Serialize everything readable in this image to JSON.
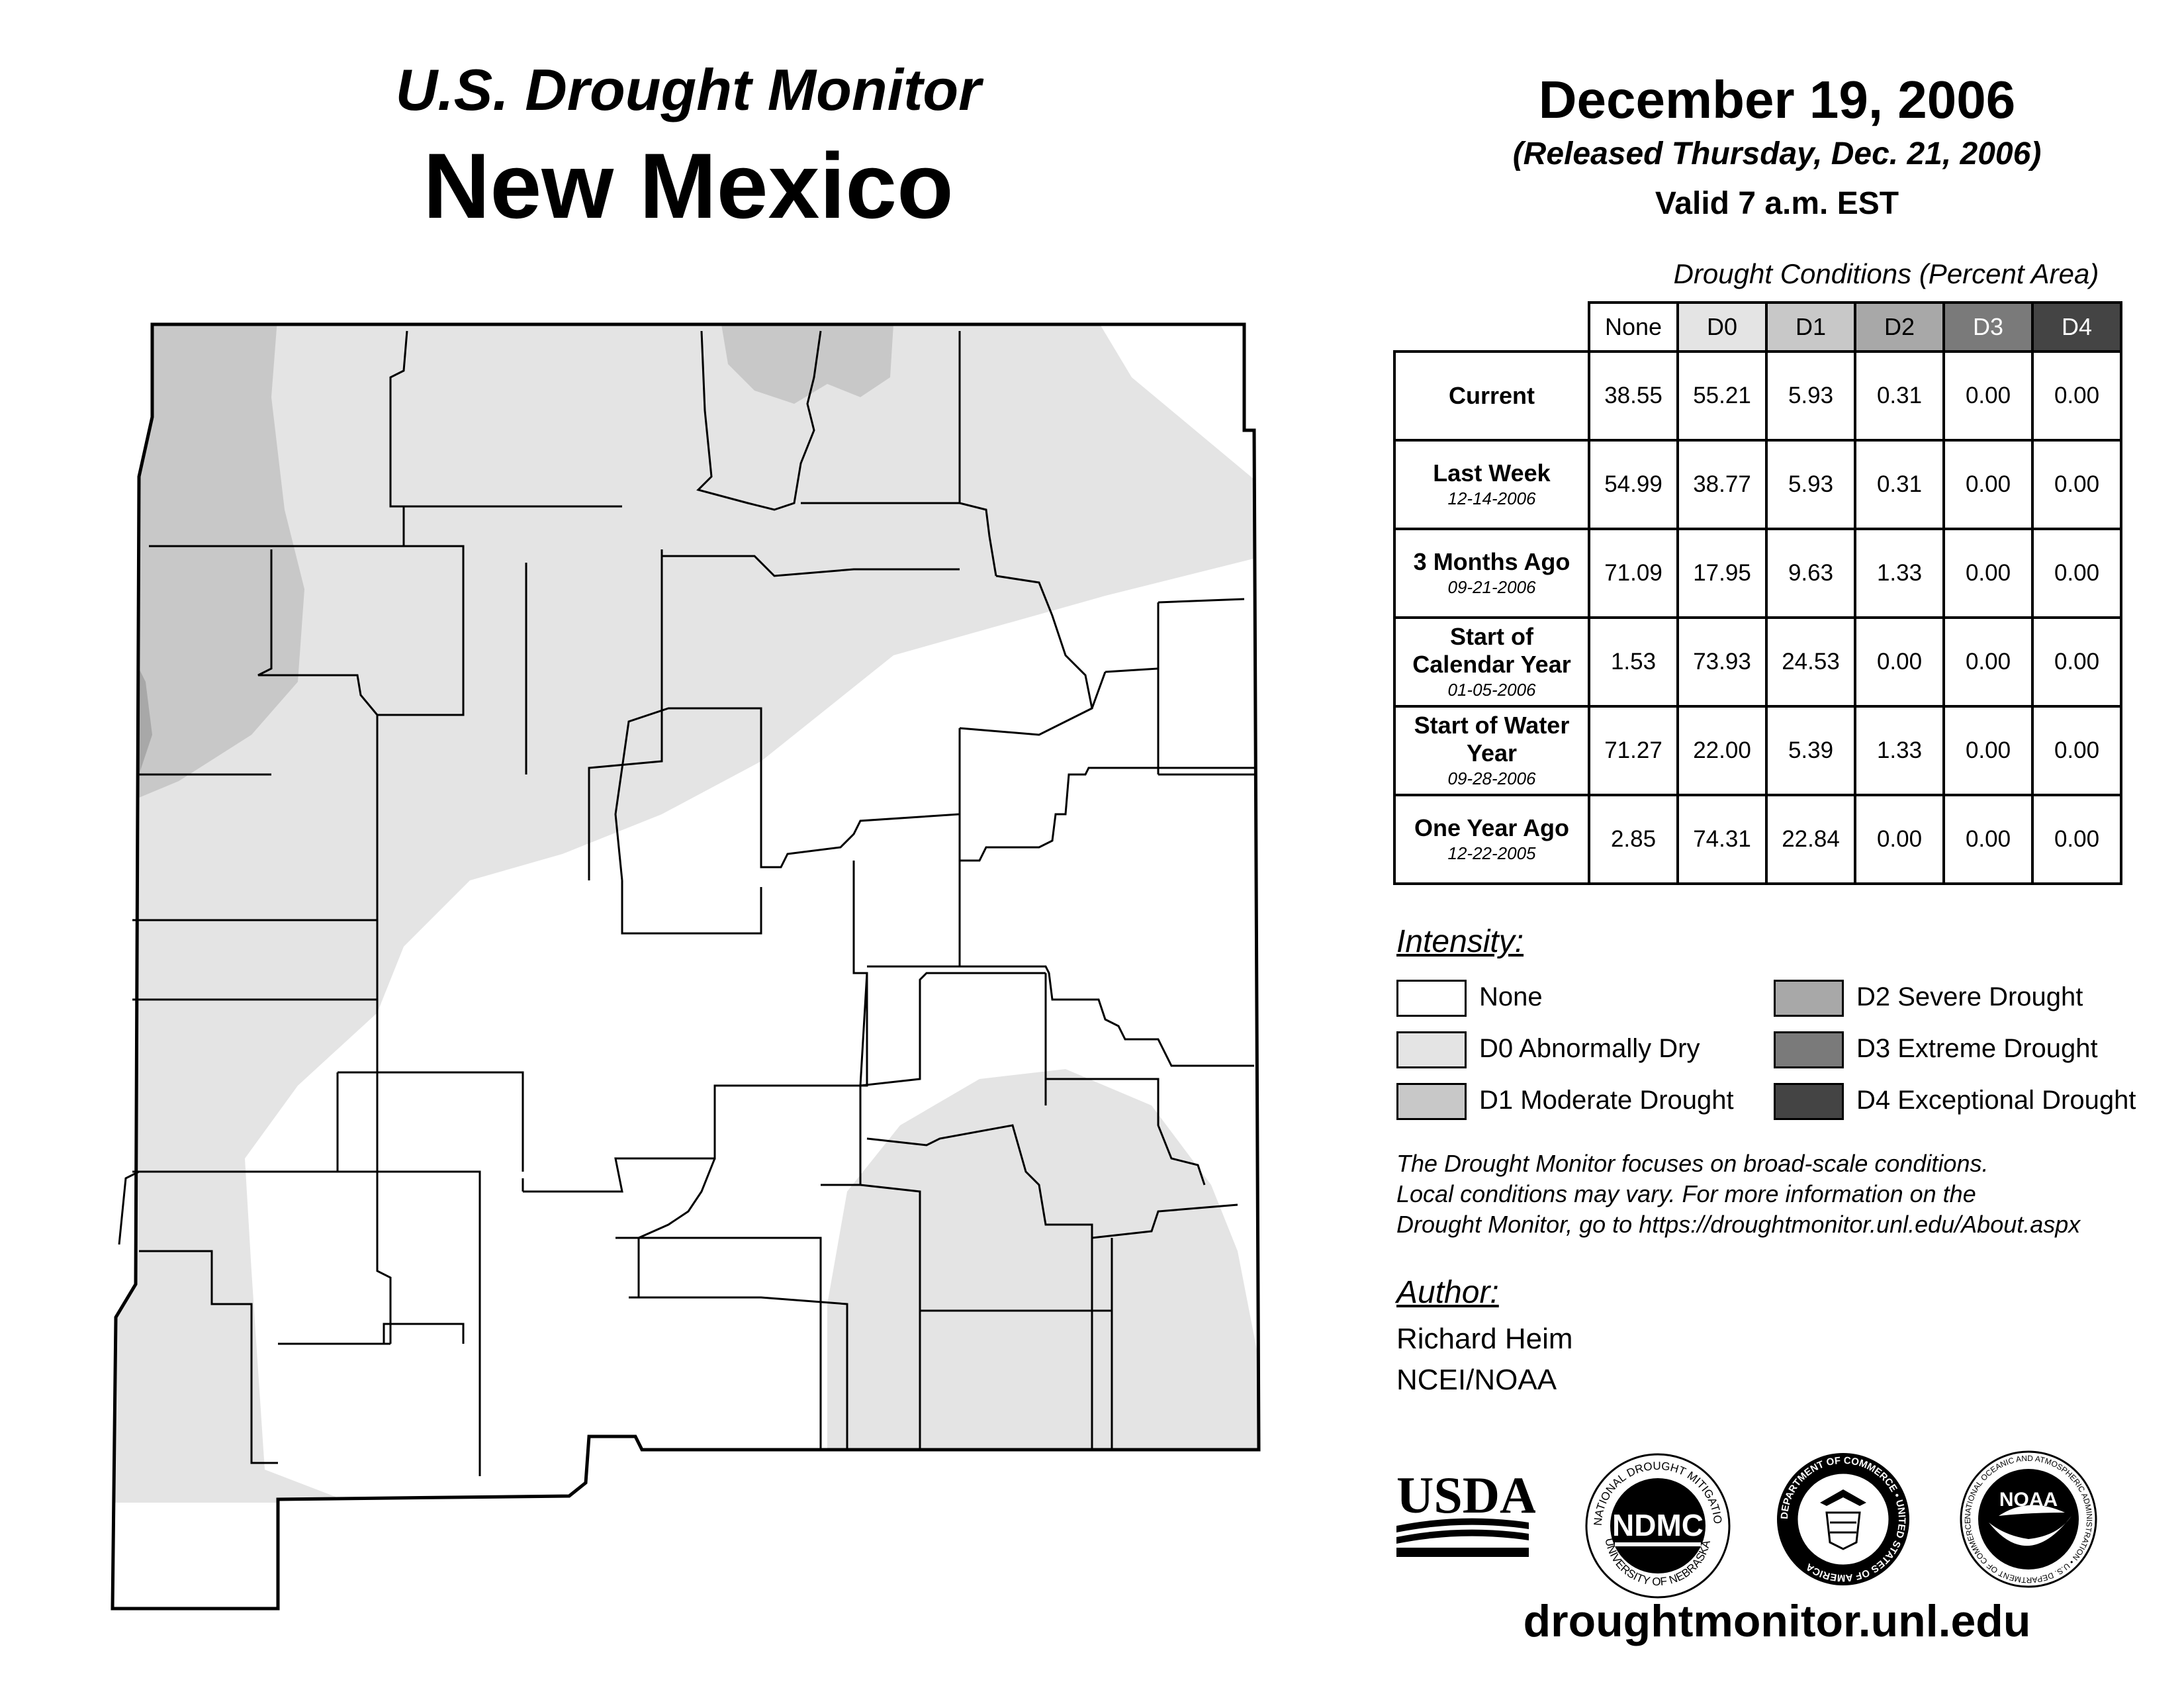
{
  "header": {
    "main_title": "U.S. Drought Monitor",
    "state": "New Mexico",
    "date": "December 19, 2006",
    "released": "(Released Thursday, Dec. 21, 2006)",
    "valid": "Valid 7 a.m. EST"
  },
  "table": {
    "title": "Drought Conditions (Percent Area)",
    "columns": [
      "None",
      "D0",
      "D1",
      "D2",
      "D3",
      "D4"
    ],
    "rows": [
      {
        "label": "Current",
        "date": "",
        "values": [
          "38.55",
          "55.21",
          "5.93",
          "0.31",
          "0.00",
          "0.00"
        ]
      },
      {
        "label": "Last Week",
        "date": "12-14-2006",
        "values": [
          "54.99",
          "38.77",
          "5.93",
          "0.31",
          "0.00",
          "0.00"
        ]
      },
      {
        "label": "3 Months Ago",
        "date": "09-21-2006",
        "values": [
          "71.09",
          "17.95",
          "9.63",
          "1.33",
          "0.00",
          "0.00"
        ]
      },
      {
        "label": "Start of Calendar Year",
        "date": "01-05-2006",
        "values": [
          "1.53",
          "73.93",
          "24.53",
          "0.00",
          "0.00",
          "0.00"
        ]
      },
      {
        "label": "Start of Water Year",
        "date": "09-28-2006",
        "values": [
          "71.27",
          "22.00",
          "5.39",
          "1.33",
          "0.00",
          "0.00"
        ]
      },
      {
        "label": "One Year Ago",
        "date": "12-22-2005",
        "values": [
          "2.85",
          "74.31",
          "22.84",
          "0.00",
          "0.00",
          "0.00"
        ]
      }
    ]
  },
  "legend": {
    "title": "Intensity:",
    "items": [
      {
        "label": "None",
        "color": "#ffffff"
      },
      {
        "label": "D0 Abnormally Dry",
        "color": "#e4e4e4"
      },
      {
        "label": "D1 Moderate Drought",
        "color": "#c8c8c8"
      },
      {
        "label": "D2 Severe Drought",
        "color": "#a8a8a8"
      },
      {
        "label": "D3 Extreme Drought",
        "color": "#7a7a7a"
      },
      {
        "label": "D4 Exceptional Drought",
        "color": "#444444"
      }
    ]
  },
  "disclaimer": [
    "The Drought Monitor focuses on broad-scale conditions.",
    "Local conditions may vary. For more information on the",
    "Drought Monitor, go to https://droughtmonitor.unl.edu/About.aspx"
  ],
  "author": {
    "title": "Author:",
    "name": "Richard Heim",
    "org": "NCEI/NOAA"
  },
  "logos": {
    "usda": "USDA",
    "ndmc": "NDMC",
    "ndmc_ring_top": "NATIONAL DROUGHT MITIGATION CENTER",
    "ndmc_ring_bottom": "UNIVERSITY OF NEBRASKA",
    "doc_ring": "DEPARTMENT OF COMMERCE • UNITED STATES OF AMERICA",
    "noaa": "NOAA",
    "noaa_ring": "NATIONAL OCEANIC AND ATMOSPHERIC ADMINISTRATION • U.S. DEPARTMENT OF COMMERCE"
  },
  "footer": {
    "url": "droughtmonitor.unl.edu"
  },
  "map_colors": {
    "none": "#ffffff",
    "d0": "#e4e4e4",
    "d1": "#c8c8c8",
    "d2": "#a8a8a8",
    "border": "#000000"
  },
  "map_icons": [
    "state-outline-icon",
    "county-borders-icon"
  ]
}
